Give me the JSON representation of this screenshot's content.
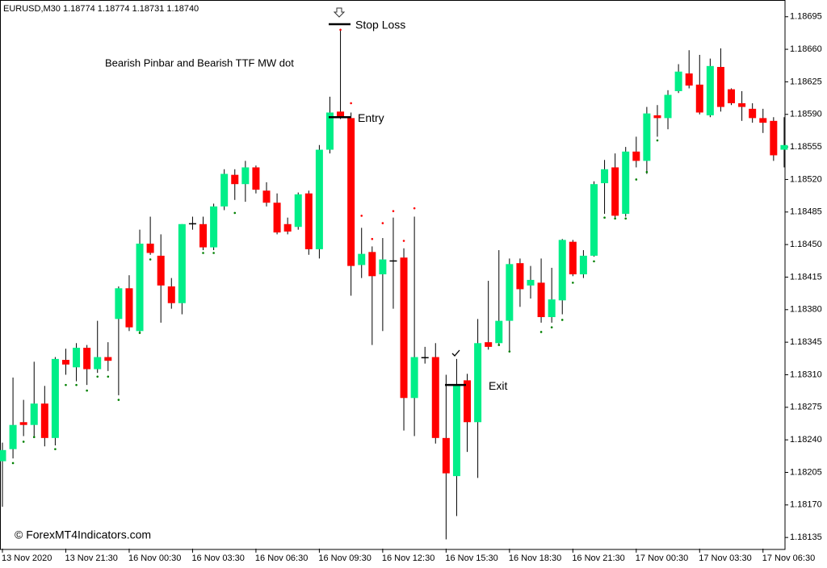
{
  "chart_data": {
    "type": "candlestick",
    "header": "EURUSD,M30  1.18774 1.18774 1.18731 1.18740",
    "title": "Bearish Pinbar and Bearish TTF MW dot",
    "watermark": "© ForexMT4Indicators.com",
    "up_color": "#00ee88",
    "down_color": "#ff0000",
    "doji_color": "#000000",
    "wick_color": "#000000",
    "buy_dot_color": "#008000",
    "sell_dot_color": "#ff0000",
    "categories": [
      "13 Nov 2020",
      null,
      null,
      null,
      null,
      null,
      "13 Nov 21:30",
      null,
      null,
      null,
      null,
      null,
      "16 Nov 00:30",
      null,
      null,
      null,
      null,
      null,
      "16 Nov 03:30",
      null,
      null,
      null,
      null,
      null,
      "16 Nov 06:30",
      null,
      null,
      null,
      null,
      null,
      "16 Nov 09:30",
      null,
      null,
      null,
      null,
      null,
      "16 Nov 12:30",
      null,
      null,
      null,
      null,
      null,
      "16 Nov 15:30",
      null,
      null,
      null,
      null,
      null,
      "16 Nov 18:30",
      null,
      null,
      null,
      null,
      null,
      "16 Nov 21:30",
      null,
      null,
      null,
      null,
      null,
      "17 Nov 00:30",
      null,
      null,
      null,
      null,
      null,
      "17 Nov 03:30",
      null,
      null,
      null,
      null,
      null,
      "17 Nov 06:30",
      null,
      null
    ],
    "open": [
      1.18217,
      1.1823,
      1.18259,
      1.18256,
      1.18279,
      1.18242,
      1.18326,
      1.18318,
      1.18339,
      1.18316,
      1.18329,
      1.1837,
      1.18403,
      1.18357,
      1.18451,
      1.18438,
      1.18405,
      1.18387,
      1.18473,
      1.18472,
      1.18447,
      1.18491,
      1.18525,
      1.18515,
      1.18533,
      1.18508,
      1.18495,
      1.18472,
      1.18469,
      1.18505,
      1.18445,
      1.18552,
      1.18593,
      1.18586,
      1.18428,
      1.18442,
      1.18418,
      1.18433,
      1.18436,
      1.18285,
      1.18329,
      1.18329,
      1.18242,
      1.18201,
      1.18304,
      1.18259,
      1.18345,
      1.18344,
      1.18368,
      1.1843,
      1.18406,
      1.18409,
      1.18372,
      1.1839,
      1.18453,
      1.18418,
      1.18438,
      1.18516,
      1.18533,
      1.18483,
      1.1855,
      1.1854,
      1.18589,
      1.18586,
      1.18615,
      1.18634,
      1.18622,
      1.18589,
      1.18641,
      1.18617,
      1.18602,
      1.18596,
      1.18586,
      1.18583,
      1.18552
    ],
    "high": [
      1.18237,
      1.18307,
      1.18283,
      1.18324,
      1.18298,
      1.18329,
      1.18338,
      1.18344,
      1.18342,
      1.18368,
      1.18345,
      1.18405,
      1.18417,
      1.18466,
      1.1848,
      1.18461,
      1.18414,
      1.18472,
      1.1848,
      1.1848,
      1.18494,
      1.18531,
      1.18531,
      1.1854,
      1.18535,
      1.18517,
      1.18505,
      1.18479,
      1.18506,
      1.18508,
      1.18557,
      1.18609,
      1.18682,
      1.18592,
      1.18468,
      1.18448,
      1.18457,
      1.18479,
      1.18446,
      1.1848,
      1.1834,
      1.18344,
      1.1831,
      1.18327,
      1.18311,
      1.1837,
      1.18411,
      1.18444,
      1.18435,
      1.18435,
      1.18427,
      1.18435,
      1.18425,
      1.18456,
      1.18455,
      1.18444,
      1.18518,
      1.18541,
      1.18548,
      1.18555,
      1.18566,
      1.18598,
      1.186,
      1.18616,
      1.18644,
      1.18659,
      1.18654,
      1.1865,
      1.18661,
      1.18618,
      1.18615,
      1.18602,
      1.18596,
      1.18587,
      1.18587
    ],
    "low": [
      1.18168,
      1.1822,
      1.18244,
      1.18244,
      1.18233,
      1.18234,
      1.1831,
      1.18303,
      1.18299,
      1.18312,
      1.18314,
      1.18288,
      1.18357,
      1.18355,
      1.18439,
      1.18366,
      1.18381,
      1.18375,
      1.18466,
      1.18444,
      1.18444,
      1.18487,
      1.18498,
      1.18496,
      1.18505,
      1.18491,
      1.18461,
      1.18461,
      1.18466,
      1.18439,
      1.18435,
      1.18548,
      1.18585,
      1.18395,
      1.18414,
      1.18342,
      1.18357,
      1.18381,
      1.1825,
      1.18244,
      1.18322,
      1.18236,
      1.18133,
      1.18158,
      1.18227,
      1.18199,
      1.18337,
      1.18342,
      1.18336,
      1.18383,
      1.18392,
      1.18366,
      1.18366,
      1.18375,
      1.18416,
      1.18414,
      1.18437,
      1.18483,
      1.18479,
      1.1848,
      1.18533,
      1.18526,
      1.18566,
      1.18574,
      1.18613,
      1.18618,
      1.1859,
      1.18587,
      1.18593,
      1.186,
      1.18583,
      1.18581,
      1.1857,
      1.1854,
      1.18533
    ],
    "close": [
      1.18229,
      1.18256,
      1.18256,
      1.18279,
      1.18242,
      1.18327,
      1.18321,
      1.18339,
      1.18316,
      1.18329,
      1.18325,
      1.18403,
      1.18361,
      1.18451,
      1.18441,
      1.18406,
      1.18387,
      1.18472,
      1.18473,
      1.18447,
      1.18491,
      1.18526,
      1.18515,
      1.18533,
      1.18509,
      1.18495,
      1.18463,
      1.18464,
      1.18504,
      1.18445,
      1.18552,
      1.18592,
      1.18586,
      1.18427,
      1.1844,
      1.18416,
      1.18434,
      1.18433,
      1.18285,
      1.18329,
      1.18329,
      1.18242,
      1.18204,
      1.18299,
      1.18259,
      1.18344,
      1.1834,
      1.18368,
      1.18429,
      1.18402,
      1.18412,
      1.18372,
      1.18391,
      1.18455,
      1.18418,
      1.18438,
      1.18515,
      1.18531,
      1.18481,
      1.1855,
      1.1854,
      1.18591,
      1.18586,
      1.18611,
      1.18636,
      1.18621,
      1.18592,
      1.18642,
      1.18598,
      1.18602,
      1.18598,
      1.18586,
      1.18581,
      1.18546,
      1.18557
    ],
    "buy_dots": [
      null,
      1.18215,
      1.18238,
      1.18243,
      null,
      1.1823,
      1.18299,
      1.18299,
      1.18293,
      1.18308,
      1.18308,
      1.18283,
      null,
      1.18355,
      1.18434,
      null,
      null,
      null,
      null,
      1.18441,
      1.18441,
      null,
      1.18484,
      null,
      null,
      null,
      null,
      null,
      null,
      null,
      null,
      null,
      null,
      null,
      null,
      null,
      null,
      null,
      null,
      null,
      null,
      null,
      null,
      null,
      null,
      null,
      null,
      1.18342,
      1.18335,
      null,
      null,
      1.18356,
      1.18361,
      1.18369,
      1.18409,
      null,
      1.18432,
      1.18479,
      1.18478,
      1.18478,
      1.1852,
      1.18528,
      1.18562,
      null,
      null,
      null,
      null,
      null,
      null,
      null,
      null,
      null,
      null,
      null,
      null
    ],
    "sell_dots": [
      null,
      null,
      null,
      null,
      null,
      null,
      null,
      null,
      null,
      null,
      null,
      null,
      null,
      null,
      null,
      null,
      null,
      null,
      null,
      null,
      null,
      null,
      null,
      null,
      null,
      null,
      null,
      null,
      null,
      null,
      null,
      null,
      1.18681,
      1.18602,
      1.18481,
      1.18456,
      1.18473,
      1.18486,
      1.18454,
      1.18489,
      null,
      null,
      null,
      null,
      null,
      null,
      null,
      null,
      null,
      null,
      null,
      null,
      null,
      null,
      null,
      null,
      null,
      null,
      null,
      null,
      null,
      null,
      null,
      null,
      null,
      null,
      null,
      null,
      null,
      null,
      null,
      null,
      null,
      null,
      null
    ],
    "stop_loss": {
      "label": "Stop Loss",
      "value": 1.18687
    },
    "entry": {
      "label": "Entry",
      "value": 1.18587
    },
    "exit": {
      "label": "Exit",
      "value": 1.18299
    },
    "ylim": [
      1.18123,
      1.18713
    ],
    "yticks": [
      1.18135,
      {
        "value": 1.1817,
        "label": "1.18170"
      },
      1.18205,
      {
        "value": 1.1824,
        "label": "1.18240"
      },
      1.18275,
      {
        "value": 1.1831,
        "label": "1.18310"
      },
      1.18345,
      {
        "value": 1.1838,
        "label": "1.18380"
      },
      1.18415,
      {
        "value": 1.1845,
        "label": "1.18450"
      },
      1.18485,
      {
        "value": 1.1852,
        "label": "1.18520"
      },
      1.18555,
      {
        "value": 1.1859,
        "label": "1.18590"
      },
      1.18625,
      {
        "value": 1.1866,
        "label": "1.18660"
      },
      1.18695
    ]
  }
}
